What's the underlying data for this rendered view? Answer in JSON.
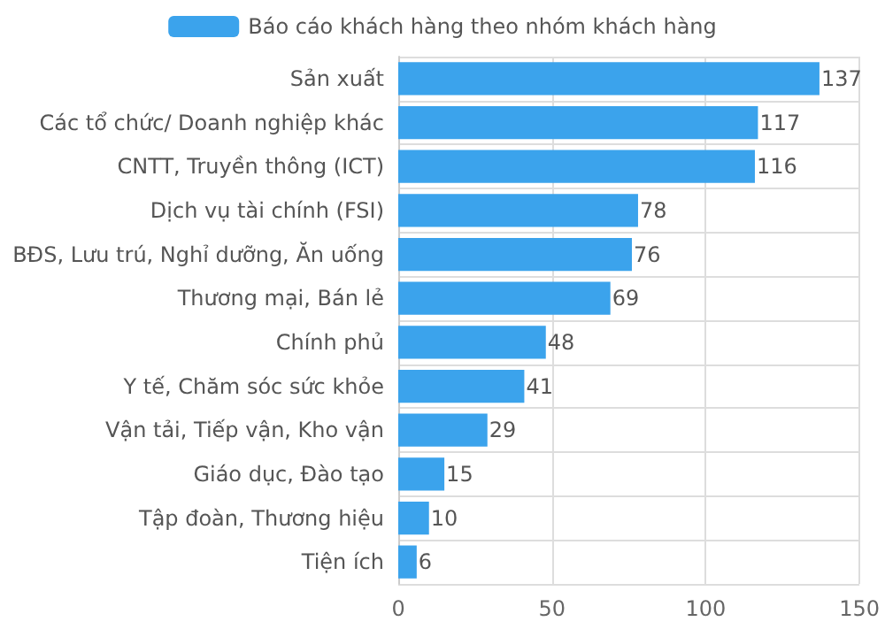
{
  "chart_data": {
    "type": "bar",
    "orientation": "horizontal",
    "categories": [
      "Sản xuất",
      "Các tổ chức/ Doanh nghiệp khác",
      "CNTT, Truyền thông (ICT)",
      "Dịch vụ tài chính (FSI)",
      "BĐS, Lưu trú, Nghỉ dưỡng, Ăn uống",
      "Thương mại, Bán lẻ",
      "Chính phủ",
      "Y tế, Chăm sóc sức khỏe",
      "Vận tải, Tiếp vận, Kho vận",
      "Giáo dục, Đào tạo",
      "Tập đoàn, Thương hiệu",
      "Tiện ích"
    ],
    "series": [
      {
        "name": "Báo cáo khách hàng theo nhóm khách hàng",
        "color": "#3ba3ec",
        "values": [
          137,
          117,
          116,
          78,
          76,
          69,
          48,
          41,
          29,
          15,
          10,
          6
        ]
      }
    ],
    "xlim": [
      0,
      150
    ],
    "xticks": [
      0,
      50,
      100,
      150
    ],
    "grid": true,
    "legend": "top",
    "data_labels": true
  }
}
